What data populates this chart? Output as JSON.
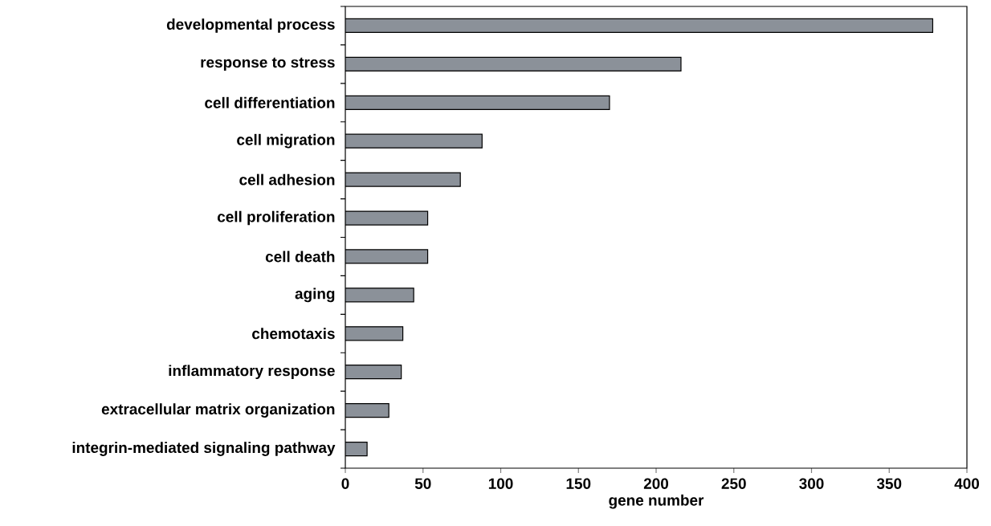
{
  "chart_data": {
    "type": "bar",
    "orientation": "horizontal",
    "xlabel": "gene number",
    "categories": [
      "developmental process",
      "response to stress",
      "cell differentiation",
      "cell migration",
      "cell adhesion",
      "cell proliferation",
      "cell death",
      "aging",
      "chemotaxis",
      "inflammatory response",
      "extracellular matrix organization",
      "integrin-mediated signaling pathway"
    ],
    "values": [
      378,
      216,
      170,
      88,
      74,
      53,
      53,
      44,
      37,
      36,
      28,
      14
    ],
    "color": "#8b9199",
    "xlim": [
      0,
      400
    ],
    "xticks": [
      0,
      50,
      100,
      150,
      200,
      250,
      300,
      350,
      400
    ]
  }
}
